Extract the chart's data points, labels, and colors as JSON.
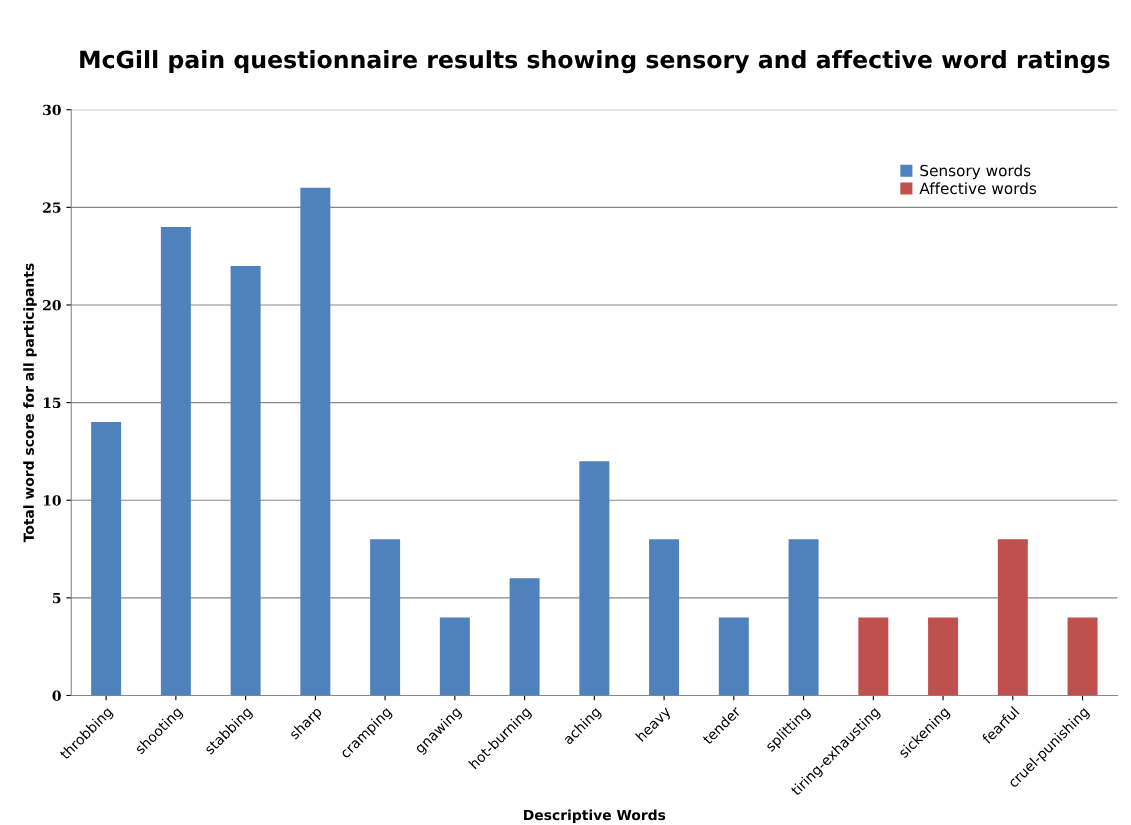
{
  "chart_data": {
    "type": "bar",
    "title": "McGill pain questionnaire results showing sensory and affective word ratings",
    "xlabel": "Descriptive Words",
    "ylabel": "Total word score for all participants",
    "categories": [
      "throbbing",
      "shooting",
      "stabbing",
      "sharp",
      "cramping",
      "gnawing",
      "hot-burning",
      "aching",
      "heavy",
      "tender",
      "splitting",
      "tiring-exhausting",
      "sickening",
      "fearful",
      "cruel-punishing"
    ],
    "series": [
      {
        "name": "Sensory words",
        "color": "#4f81bd",
        "values": [
          14,
          24,
          22,
          26,
          8,
          4,
          6,
          12,
          8,
          4,
          8,
          null,
          null,
          null,
          null
        ]
      },
      {
        "name": "Affective words",
        "color": "#c0504d",
        "values": [
          null,
          null,
          null,
          null,
          null,
          null,
          null,
          null,
          null,
          null,
          null,
          4,
          4,
          8,
          4
        ]
      }
    ],
    "ylim": [
      0,
      30
    ],
    "yticks": [
      0,
      5,
      10,
      15,
      20,
      25,
      30
    ],
    "grid": "y",
    "legend": "top right"
  }
}
